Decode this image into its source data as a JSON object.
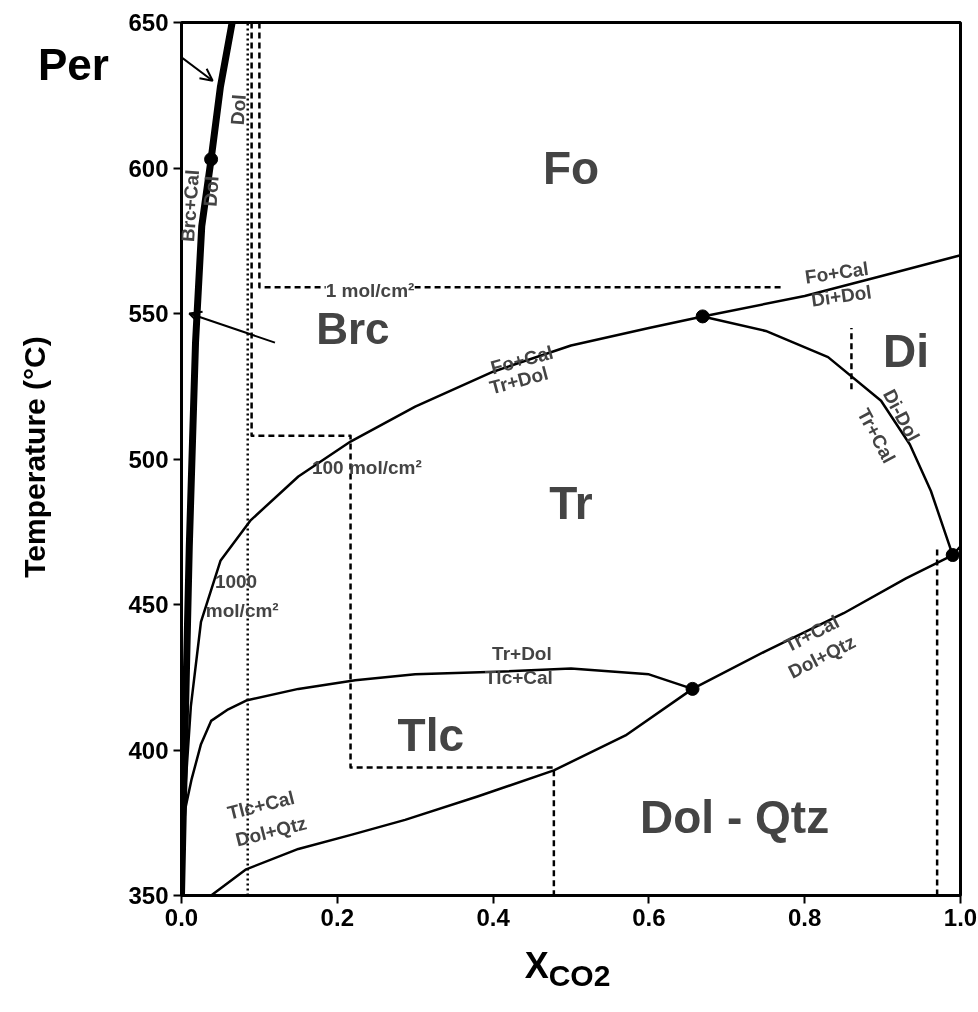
{
  "chart_data": {
    "type": "line",
    "xlabel": "X$_{CO2}$",
    "ylabel": "Temperature (°C)",
    "xlim": [
      0,
      1
    ],
    "ylim": [
      350,
      650
    ],
    "xticks": [
      {
        "value": 0,
        "label": "0.0"
      },
      0.2,
      0.4,
      0.6,
      0.8,
      {
        "value": 1,
        "label": "1.0"
      }
    ],
    "yticks": [
      350,
      400,
      450,
      500,
      550,
      600,
      650
    ],
    "grid": false,
    "series": [
      {
        "color": "#000000",
        "line_style": "solid",
        "x": [
          0,
          0.004,
          0.01,
          0.018,
          0.026,
          0.038,
          0.05,
          0.065
        ],
        "values": [
          350,
          400,
          470,
          540,
          580,
          603,
          628,
          650
        ]
      },
      {
        "color": "#000000",
        "line_style": "solid",
        "x": [
          0,
          0.004,
          0.012,
          0.025,
          0.05,
          0.089,
          0.15,
          0.217,
          0.3,
          0.4,
          0.5,
          0.6,
          0.669,
          0.8,
          0.9,
          1.0
        ],
        "values": [
          350,
          383,
          415,
          444,
          465,
          479,
          494,
          506,
          518,
          530,
          539,
          545,
          549,
          556,
          563,
          570
        ]
      },
      {
        "color": "#000000",
        "line_style": "solid",
        "x": [
          0.669,
          0.75,
          0.83,
          0.898,
          0.935,
          0.962,
          0.99
        ],
        "values": [
          549,
          544,
          535,
          520,
          505,
          489,
          467
        ]
      },
      {
        "color": "#000000",
        "line_style": "solid",
        "x": [
          0.038,
          0.083,
          0.15,
          0.22,
          0.287,
          0.38,
          0.478,
          0.57,
          0.656,
          0.75,
          0.85,
          0.93,
          0.99,
          1.0
        ],
        "values": [
          350,
          359,
          366,
          371,
          376,
          384,
          393,
          405,
          421,
          434,
          447,
          459,
          467,
          470
        ]
      },
      {
        "color": "#000000",
        "line_style": "solid",
        "x": [
          0,
          0.005,
          0.013,
          0.025,
          0.038,
          0.06,
          0.083,
          0.15,
          0.223,
          0.3,
          0.414,
          0.5,
          0.6,
          0.656
        ],
        "values": [
          362,
          380,
          390,
          402,
          410,
          414,
          417,
          421,
          424,
          426,
          427,
          428,
          426,
          421
        ]
      },
      {
        "color": "#000000",
        "line_style": "dashed",
        "x": [
          0.1,
          0.1,
          0.771
        ],
        "values": [
          650,
          559,
          559
        ]
      },
      {
        "color": "#000000",
        "line_style": "dashed",
        "x": [
          0.09,
          0.09,
          0.217,
          0.217,
          0.478,
          0.478
        ],
        "values": [
          650,
          508,
          508,
          394,
          394,
          350
        ]
      },
      {
        "color": "#000000",
        "line_style": "dotted",
        "x": [
          0.085,
          0.085
        ],
        "values": [
          350,
          650
        ]
      },
      {
        "color": "#000000",
        "line_style": "dashed",
        "x": [
          0.86,
          0.86
        ],
        "values": [
          524,
          545
        ]
      },
      {
        "color": "#000000",
        "line_style": "dashed",
        "x": [
          0.97,
          0.97
        ],
        "values": [
          350,
          470
        ]
      },
      {
        "type": "scatter",
        "color": "#000000",
        "marker": "circle",
        "x": [
          0.038,
          0.669,
          0.99,
          0.656
        ],
        "values": [
          603,
          549,
          467,
          421
        ]
      }
    ],
    "annotations": [
      "Per",
      "Brc",
      "Fo",
      "Di",
      "Tr",
      "Tlc",
      "Dol - Qtz",
      "Fo+Cal",
      "Di+Dol",
      "Fo+Cal",
      "Tr+Dol",
      "Di-Dol",
      "Tr+Cal",
      "Tr+Cal",
      "Dol+Qtz",
      "Tr+Dol",
      "Tlc+Cal",
      "Tlc+Cal",
      "Dol+Qtz",
      "Brc+Cal",
      "Dol",
      "Dol",
      "1 mol/cm²",
      "100 mol/cm²",
      "1000",
      "mol/cm²"
    ]
  }
}
